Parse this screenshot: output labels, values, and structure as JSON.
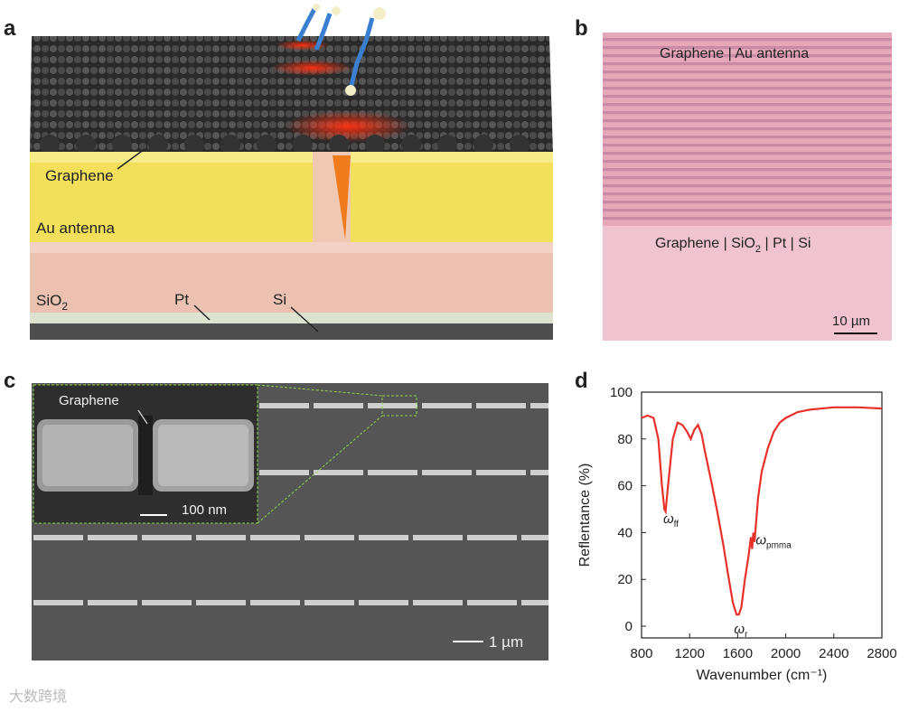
{
  "panels": {
    "a": {
      "label": "a",
      "graphene": "Graphene",
      "antenna": "Au antenna",
      "sio2": "SiO",
      "sio2_sub": "2",
      "pt": "Pt",
      "si": "Si"
    },
    "b": {
      "label": "b",
      "top_text": "Graphene | Au antenna",
      "bottom_text_pre": "Graphene | SiO",
      "bottom_text_sub": "2",
      "bottom_text_post": " | Pt | Si",
      "scale": "10 µm"
    },
    "c": {
      "label": "c",
      "inset_graphene": "Graphene",
      "inset_scale": "100 nm",
      "scale": "1 µm"
    },
    "d": {
      "label": "d"
    }
  },
  "chart_data": {
    "type": "line",
    "xlabel": "Wavenumber (cm⁻¹)",
    "ylabel": "Reflentance (%)",
    "xlim": [
      800,
      2800
    ],
    "ylim": [
      -5,
      100
    ],
    "xticks": [
      800,
      1200,
      1600,
      2000,
      2400,
      2800
    ],
    "yticks": [
      0,
      20,
      40,
      60,
      80,
      100
    ],
    "series": [
      {
        "color": "#e8312a",
        "x": [
          800,
          850,
          900,
          940,
          970,
          990,
          1000,
          1020,
          1060,
          1100,
          1140,
          1180,
          1210,
          1240,
          1270,
          1300,
          1330,
          1380,
          1430,
          1480,
          1520,
          1560,
          1590,
          1610,
          1630,
          1660,
          1690,
          1710,
          1720,
          1730,
          1740,
          1770,
          1800,
          1850,
          1900,
          1950,
          2000,
          2100,
          2200,
          2400,
          2600,
          2800
        ],
        "y": [
          89,
          90,
          89,
          80,
          60,
          50,
          49,
          60,
          80,
          87,
          86,
          83,
          80,
          84,
          86,
          82,
          74,
          62,
          49,
          35,
          22,
          10,
          5,
          5,
          8,
          20,
          30,
          38,
          33,
          40,
          36,
          55,
          66,
          76,
          83,
          87,
          89,
          91.5,
          92.5,
          93.5,
          93.5,
          93
        ]
      }
    ],
    "annotations": [
      {
        "text": "ω",
        "sub": "ff",
        "x": 980,
        "y": 44
      },
      {
        "text": "ω",
        "sub": "pmma",
        "x": 1750,
        "y": 35
      },
      {
        "text": "ω",
        "sub": "r",
        "x": 1570,
        "y": -3
      }
    ]
  },
  "watermark": "大数跨境"
}
